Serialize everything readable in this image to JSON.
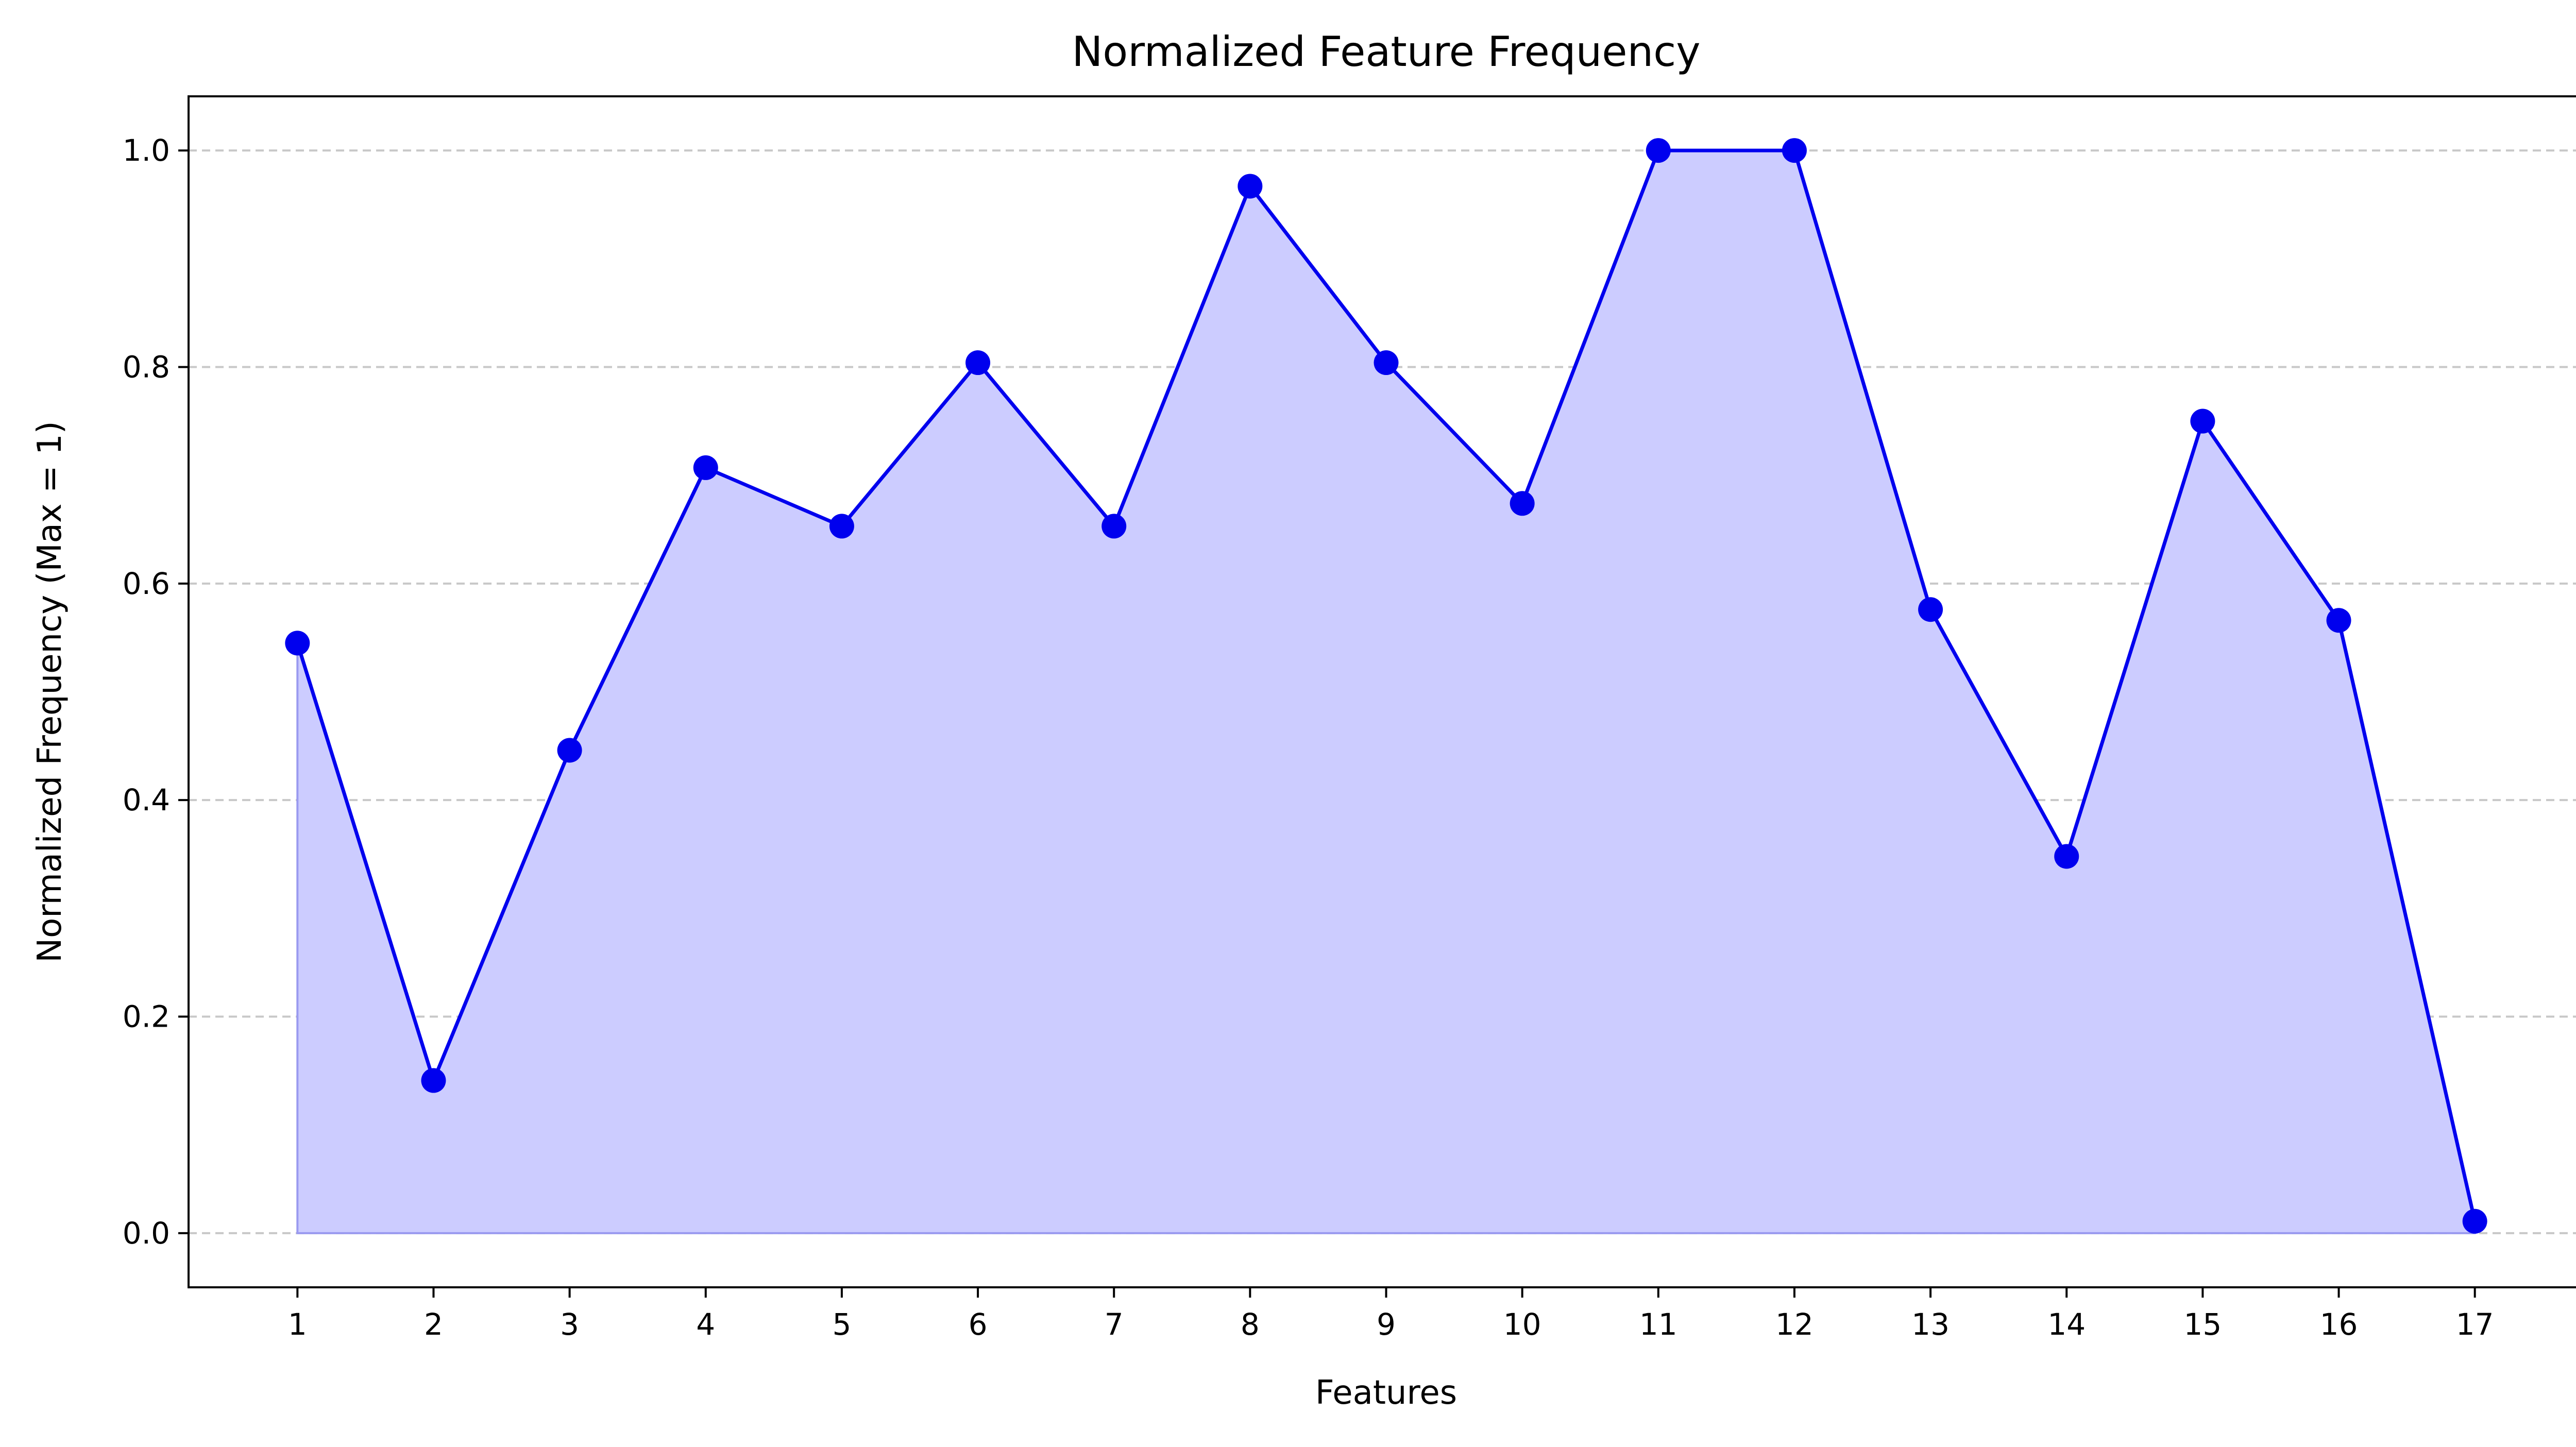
{
  "chart_data": {
    "type": "area",
    "title": "Normalized Feature Frequency",
    "xlabel": "Features",
    "ylabel": "Normalized Frequency (Max = 1)",
    "x": [
      1,
      2,
      3,
      4,
      5,
      6,
      7,
      8,
      9,
      10,
      11,
      12,
      13,
      14,
      15,
      16,
      17
    ],
    "x_tick_labels": [
      "1",
      "2",
      "3",
      "4",
      "5",
      "6",
      "7",
      "8",
      "9",
      "10",
      "11",
      "12",
      "13",
      "14",
      "15",
      "16",
      "17"
    ],
    "values": [
      0.545,
      0.141,
      0.446,
      0.707,
      0.653,
      0.804,
      0.653,
      0.967,
      0.804,
      0.674,
      1.0,
      1.0,
      0.576,
      0.348,
      0.75,
      0.566,
      0.011
    ],
    "y_ticks": [
      0.0,
      0.2,
      0.4,
      0.6,
      0.8,
      1.0
    ],
    "y_tick_labels": [
      "0.0",
      "0.2",
      "0.4",
      "0.6",
      "0.8",
      "1.0"
    ],
    "xlim": [
      0.2,
      17.8
    ],
    "ylim": [
      -0.05,
      1.05
    ],
    "grid": "horizontal dashed",
    "colors": {
      "line": "#0000ee",
      "marker": "#0000ee",
      "fill": "#ccccff",
      "fill_edge": "#9a9af0",
      "grid": "#c8c8c8",
      "axes": "#000000"
    }
  }
}
